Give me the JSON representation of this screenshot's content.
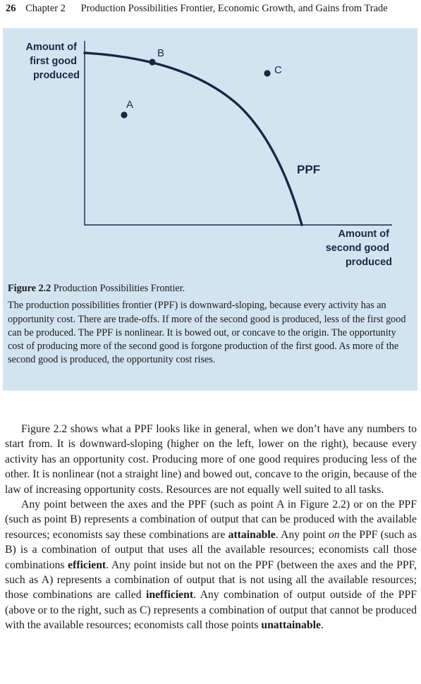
{
  "header": {
    "page_number": "26",
    "chapter": "Chapter 2",
    "chapter_title": "Production Possibilities Frontier, Economic Growth, and Gains from Trade"
  },
  "figure": {
    "y_axis_label": [
      "Amount of",
      "first good",
      "produced"
    ],
    "x_axis_label": [
      "Amount of",
      "second good",
      "produced"
    ],
    "curve_label": "PPF",
    "points": [
      {
        "label": "A",
        "position": "inside the PPF"
      },
      {
        "label": "B",
        "position": "on the PPF"
      },
      {
        "label": "C",
        "position": "outside the PPF"
      }
    ],
    "colors": {
      "background": "#d3e4f1",
      "ink": "#1a2744"
    },
    "caption_label": "Figure 2.2",
    "caption_title": "Production Possibilities Frontier.",
    "caption_body": "The production possibilities frontier (PPF) is downward-sloping, because every activity has an opportunity cost. There are trade-offs. If more of the second good is produced, less of the first good can be produced. The PPF is nonlinear. It is bowed out, or concave to the origin. The opportunity cost of producing more of the second good is forgone production of the first good. As more of the second good is produced, the opportunity cost rises."
  },
  "body": {
    "p1": "Figure 2.2 shows what a PPF looks like in general, when we don’t have any numbers to start from. It is downward-sloping (higher on the left, lower on the right), because every activity has an opportunity cost. Producing more of one good requires producing less of the other. It is nonlinear (not a straight line) and bowed out, concave to the origin, because of the law of increasing opportunity costs. Resources are not equally well suited to all tasks.",
    "p2": {
      "s1": "Any point between the axes and the PPF (such as point A in Figure 2.2) or on the PPF (such as point B) represents a combination of output that can be produced with the available resources; economists say these combinations are ",
      "k1": "attainable",
      "s2": ". Any point ",
      "em1": "on",
      "s3": " the PPF (such as B) is a combination of output that uses all the available resources; economists call those combinations ",
      "k2": "efficient",
      "s4": ". Any point inside but not on the PPF (between the axes and the PPF, such as A) represents a combination of output that is not using all the available resources; those combinations are called ",
      "k3": "inefficient",
      "s5": ". Any combination of output outside of the PPF (above or to the right, such as C) represents a combination of output that cannot be produced with the available resources; economists call those points ",
      "k4": "unattainable",
      "s6": "."
    }
  }
}
